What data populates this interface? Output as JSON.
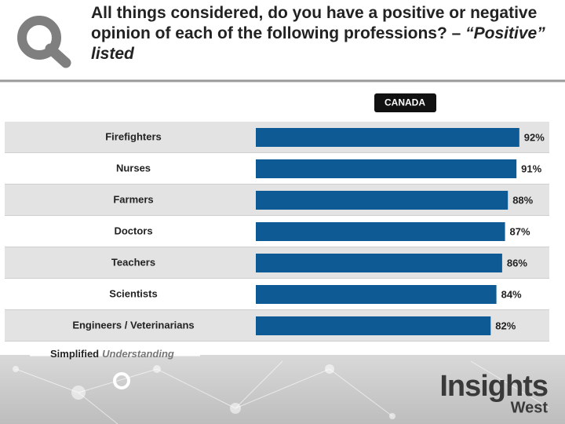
{
  "chart_data": {
    "type": "bar",
    "orientation": "horizontal",
    "title": "All things considered, do you have a positive or negative opinion of each of the following professions? – ",
    "title_emphasis": "“Positive” listed",
    "categories": [
      "Firefighters",
      "Nurses",
      "Farmers",
      "Doctors",
      "Teachers",
      "Scientists",
      "Engineers / Veterinarians"
    ],
    "series": [
      {
        "name": "CANADA",
        "color": "#0d5a94",
        "values": [
          92,
          91,
          88,
          87,
          86,
          84,
          82
        ],
        "value_labels": [
          "92%",
          "91%",
          "88%",
          "87%",
          "86%",
          "84%",
          "82%"
        ]
      }
    ],
    "xlim": [
      0,
      100
    ]
  },
  "footer": {
    "tagline": "Simplified",
    "tagline_emphasis": "Understanding",
    "logo_main": "Insights",
    "logo_sub": "West"
  }
}
